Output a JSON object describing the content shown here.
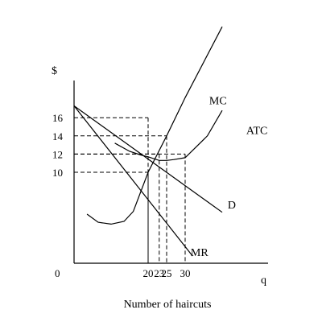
{
  "chart_data": {
    "type": "line",
    "title": "",
    "ylabel": "$",
    "xlabel": "q",
    "caption": "Number of haircuts",
    "origin_label": "0",
    "xlim": [
      0,
      40
    ],
    "ylim": [
      0,
      21
    ],
    "x_ticks": [
      20,
      23,
      25,
      30
    ],
    "y_ticks": [
      10,
      12,
      14,
      16
    ],
    "series": [
      {
        "name": "D",
        "x": [
          0,
          40
        ],
        "y": [
          17.3,
          5.6
        ],
        "label_at": [
          41.5,
          6.0
        ]
      },
      {
        "name": "MR",
        "x": [
          0,
          32
        ],
        "y": [
          17.3,
          0.8
        ],
        "label_at": [
          31.5,
          0.8
        ]
      },
      {
        "name": "MC",
        "x": [
          3.5,
          6.5,
          10,
          13.5,
          16,
          20,
          25,
          30,
          40
        ],
        "y": [
          5.4,
          4.5,
          4.3,
          4.6,
          5.7,
          10,
          14,
          18.2,
          26
        ],
        "label_at": [
          36.5,
          17.5
        ]
      },
      {
        "name": "ATC",
        "x": [
          11,
          15,
          18,
          20,
          23,
          25,
          27,
          30,
          36,
          40
        ],
        "y": [
          13.2,
          12.3,
          11.9,
          11.7,
          11.3,
          11.3,
          11.4,
          11.6,
          14,
          16.8
        ],
        "label_at": [
          46.5,
          14.2
        ]
      }
    ],
    "guides": [
      {
        "x": 20,
        "y": 16
      },
      {
        "x": 20,
        "y": 10
      },
      {
        "x": 23,
        "y": 12
      },
      {
        "x": 25,
        "y": 14
      },
      {
        "x": 30,
        "y": 12
      }
    ]
  }
}
